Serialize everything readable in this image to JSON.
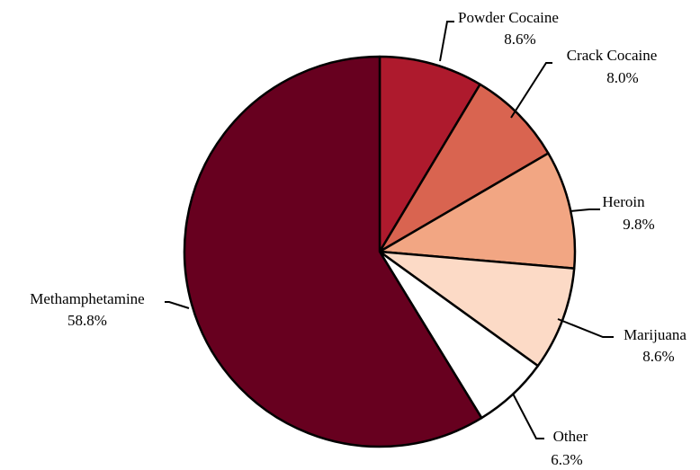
{
  "chart_data": {
    "type": "pie",
    "title": "",
    "start_angle_deg": 0,
    "direction": "clockwise",
    "slices": [
      {
        "name": "Powder Cocaine",
        "value": 8.6,
        "label": "8.6%",
        "color": "#ae1a2d"
      },
      {
        "name": "Crack Cocaine",
        "value": 8.0,
        "label": "8.0%",
        "color": "#d96450"
      },
      {
        "name": "Heroin",
        "value": 9.8,
        "label": "9.8%",
        "color": "#f2a683"
      },
      {
        "name": "Marijuana",
        "value": 8.6,
        "label": "8.6%",
        "color": "#fcdac6"
      },
      {
        "name": "Other",
        "value": 6.3,
        "label": "6.3%",
        "color": "#ffffff"
      },
      {
        "name": "Methamphetamine",
        "value": 58.8,
        "label": "58.8%",
        "color": "#67001f"
      }
    ]
  }
}
